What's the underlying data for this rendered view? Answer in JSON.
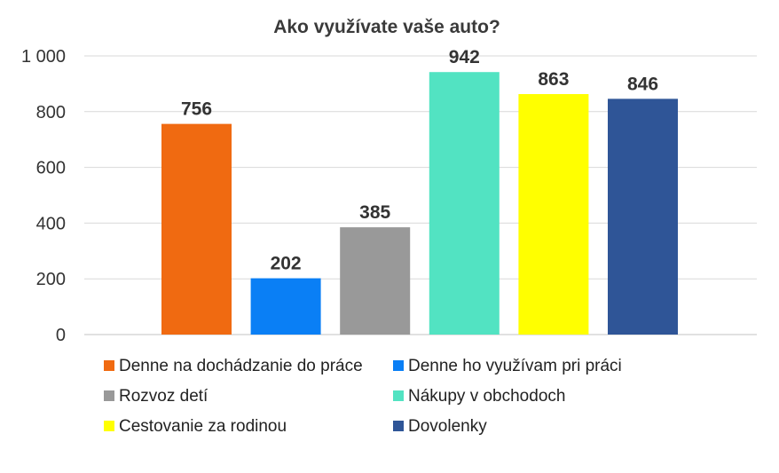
{
  "chart_data": {
    "type": "bar",
    "title": "Ako využívate vaše auto?",
    "xlabel": "",
    "ylabel": "",
    "ylim": [
      0,
      1000
    ],
    "yticks": [
      0,
      200,
      400,
      600,
      800,
      1000
    ],
    "ytick_labels": [
      "0",
      "200",
      "400",
      "600",
      "800",
      "1 000"
    ],
    "grid": true,
    "legend_position": "bottom",
    "series": [
      {
        "name": "Denne na dochádzanie do práce",
        "value": 756,
        "label": "756",
        "color": "#F06A11"
      },
      {
        "name": "Denne ho využívam pri práci",
        "value": 202,
        "label": "202",
        "color": "#0A7FF5"
      },
      {
        "name": "Rozvoz detí",
        "value": 385,
        "label": "385",
        "color": "#999999"
      },
      {
        "name": "Nákupy v obchodoch",
        "value": 942,
        "label": "942",
        "color": "#52E3C2"
      },
      {
        "name": "Cestovanie za rodinou",
        "value": 863,
        "label": "863",
        "color": "#FFFF00"
      },
      {
        "name": "Dovolenky",
        "value": 846,
        "label": "846",
        "color": "#2F5597"
      }
    ]
  }
}
